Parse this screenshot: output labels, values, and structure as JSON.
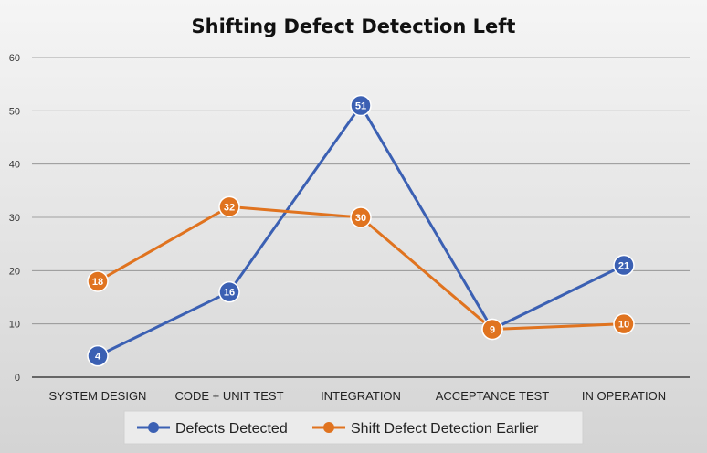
{
  "chart_data": {
    "type": "line",
    "title": "Shifting Defect Detection Left",
    "categories": [
      "SYSTEM DESIGN",
      "CODE + UNIT TEST",
      "INTEGRATION",
      "ACCEPTANCE TEST",
      "IN OPERATION"
    ],
    "ylim": [
      0,
      60
    ],
    "yticks": [
      0,
      10,
      20,
      30,
      40,
      50,
      60
    ],
    "grid": true,
    "legend": "bottom",
    "series": [
      {
        "name": "Defects Detected",
        "color": "#3b60b3",
        "values": [
          4,
          16,
          51,
          9,
          21
        ]
      },
      {
        "name": "Shift Defect Detection Earlier",
        "color": "#e0731f",
        "values": [
          18,
          32,
          30,
          9,
          10
        ]
      }
    ],
    "data_labels": true
  }
}
